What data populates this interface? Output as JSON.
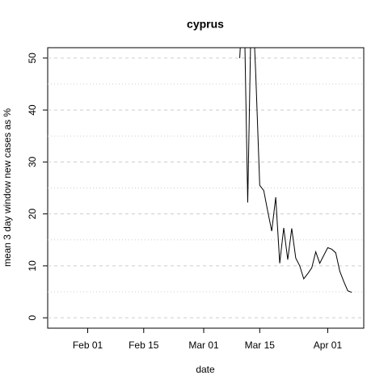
{
  "chart_data": {
    "type": "line",
    "title": "cyprus",
    "x_label": "date",
    "y_label": "mean  3  day window new cases as %",
    "x": [
      "Mar 10",
      "Mar 11",
      "Mar 12",
      "Mar 13",
      "Mar 14",
      "Mar 15",
      "Mar 16",
      "Mar 17",
      "Mar 18",
      "Mar 19",
      "Mar 20",
      "Mar 21",
      "Mar 22",
      "Mar 23",
      "Mar 24",
      "Mar 25",
      "Mar 26",
      "Mar 27",
      "Mar 28",
      "Mar 29",
      "Mar 30",
      "Mar 31",
      "Apr 01",
      "Apr 02",
      "Apr 03",
      "Apr 04",
      "Apr 05",
      "Apr 06",
      "Apr 07"
    ],
    "series": [
      {
        "name": "cyprus",
        "color": "#000000",
        "values": [
          50,
          65,
          22.2,
          65,
          47,
          25.5,
          24.5,
          20.5,
          16.7,
          23.2,
          10.5,
          17.3,
          11.2,
          17.2,
          11.5,
          10,
          7.5,
          8.5,
          9.6,
          12.7,
          10.5,
          12,
          13.5,
          13.2,
          12.5,
          9,
          7,
          5.2,
          4.9
        ]
      }
    ],
    "xlim": [
      "Jan 22",
      "Apr 10"
    ],
    "xticks": [
      "Feb 01",
      "Feb 15",
      "Mar 01",
      "Mar 15",
      "Apr 01"
    ],
    "ylim": [
      -2,
      52
    ],
    "yticks": [
      0,
      10,
      20,
      30,
      40,
      50
    ],
    "y_minor_grid": [
      5,
      15,
      25,
      35,
      45
    ],
    "grid": true
  }
}
